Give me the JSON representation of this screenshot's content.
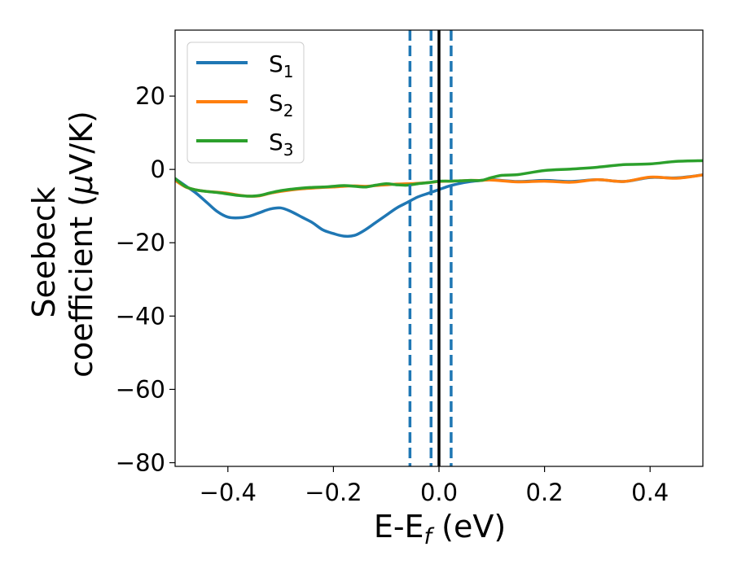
{
  "chart_data": {
    "type": "line",
    "xlabel": "E-E",
    "xlabel_sub": "f",
    "xlabel_unit": " (eV)",
    "ylabel_line1": "Seebeck",
    "ylabel_line2_pre": "coefficient  (",
    "ylabel_mu": "μ",
    "ylabel_line2_post": "V/K)",
    "xlim": [
      -0.5,
      0.5
    ],
    "ylim": [
      -81,
      38
    ],
    "xticks": [
      -0.4,
      -0.2,
      0.0,
      0.2,
      0.4
    ],
    "xtick_labels": [
      "−0.4",
      "−0.2",
      "0.0",
      "0.2",
      "0.4"
    ],
    "yticks": [
      -80,
      -60,
      -40,
      -20,
      0,
      20
    ],
    "ytick_labels": [
      "−80",
      "−60",
      "−40",
      "−20",
      "0",
      "20"
    ],
    "legend_position": "top-left",
    "vertical_lines": [
      {
        "x": -0.055,
        "style": "dashed",
        "color": "#1f77b4"
      },
      {
        "x": -0.015,
        "style": "dashed",
        "color": "#1f77b4"
      },
      {
        "x": 0.0,
        "style": "solid",
        "color": "#000000"
      },
      {
        "x": 0.023,
        "style": "dashed",
        "color": "#1f77b4"
      }
    ],
    "series": [
      {
        "name": "S",
        "subscript": "1",
        "color": "#1f77b4",
        "x": [
          -0.5,
          -0.48,
          -0.46,
          -0.44,
          -0.42,
          -0.4,
          -0.38,
          -0.36,
          -0.34,
          -0.32,
          -0.3,
          -0.28,
          -0.26,
          -0.24,
          -0.22,
          -0.2,
          -0.18,
          -0.16,
          -0.14,
          -0.12,
          -0.1,
          -0.08,
          -0.06,
          -0.04,
          -0.02,
          0.0,
          0.02,
          0.04,
          0.06,
          0.08,
          0.1,
          0.15,
          0.2,
          0.25,
          0.3,
          0.35,
          0.4,
          0.45,
          0.5
        ],
        "y": [
          -2.5,
          -4.5,
          -6.5,
          -9,
          -11.5,
          -13,
          -13.2,
          -12.8,
          -11.8,
          -10.8,
          -10.5,
          -11.5,
          -13,
          -14.5,
          -16.5,
          -17.5,
          -18.2,
          -18,
          -16.5,
          -14.5,
          -12.5,
          -10.5,
          -9,
          -7.5,
          -6.5,
          -5.5,
          -4.5,
          -3.8,
          -3.3,
          -3.0,
          -2.8,
          -3.3,
          -3.0,
          -3.3,
          -2.8,
          -3.3,
          -2.2,
          -2.3,
          -1.5
        ]
      },
      {
        "name": "S",
        "subscript": "2",
        "color": "#ff7f0e",
        "x": [
          -0.5,
          -0.48,
          -0.46,
          -0.44,
          -0.42,
          -0.4,
          -0.38,
          -0.36,
          -0.34,
          -0.32,
          -0.3,
          -0.28,
          -0.26,
          -0.24,
          -0.22,
          -0.2,
          -0.18,
          -0.16,
          -0.14,
          -0.12,
          -0.1,
          -0.08,
          -0.06,
          -0.04,
          -0.02,
          0.0,
          0.02,
          0.04,
          0.06,
          0.08,
          0.1,
          0.15,
          0.2,
          0.25,
          0.3,
          0.35,
          0.4,
          0.45,
          0.5
        ],
        "y": [
          -3,
          -4.8,
          -5.6,
          -6,
          -6.2,
          -6.5,
          -7,
          -7.3,
          -7.2,
          -6.5,
          -6,
          -5.6,
          -5.3,
          -5.1,
          -4.9,
          -4.8,
          -4.6,
          -4.5,
          -4.6,
          -4.4,
          -4.2,
          -4.0,
          -3.9,
          -3.8,
          -3.6,
          -3.3,
          -3.2,
          -3.1,
          -3.0,
          -3.0,
          -2.9,
          -3.4,
          -3.2,
          -3.5,
          -2.8,
          -3.3,
          -2.1,
          -2.4,
          -1.5
        ]
      },
      {
        "name": "S",
        "subscript": "3",
        "color": "#2ca02c",
        "x": [
          -0.5,
          -0.48,
          -0.46,
          -0.44,
          -0.42,
          -0.4,
          -0.38,
          -0.36,
          -0.34,
          -0.32,
          -0.3,
          -0.28,
          -0.26,
          -0.24,
          -0.22,
          -0.2,
          -0.18,
          -0.16,
          -0.14,
          -0.12,
          -0.1,
          -0.08,
          -0.06,
          -0.04,
          -0.02,
          0.0,
          0.02,
          0.04,
          0.06,
          0.08,
          0.1,
          0.12,
          0.15,
          0.2,
          0.25,
          0.3,
          0.35,
          0.4,
          0.45,
          0.5
        ],
        "y": [
          -2.5,
          -4.7,
          -5.6,
          -6,
          -6.3,
          -6.7,
          -7.1,
          -7.3,
          -7.1,
          -6.4,
          -5.8,
          -5.4,
          -5.1,
          -4.9,
          -4.8,
          -4.6,
          -4.4,
          -4.6,
          -4.8,
          -4.3,
          -3.9,
          -4.2,
          -4.3,
          -3.9,
          -3.6,
          -3.2,
          -3.2,
          -3.1,
          -3.0,
          -3.0,
          -2.2,
          -1.6,
          -1.4,
          -0.3,
          0.1,
          0.6,
          1.3,
          1.5,
          2.2,
          2.4
        ]
      }
    ]
  }
}
